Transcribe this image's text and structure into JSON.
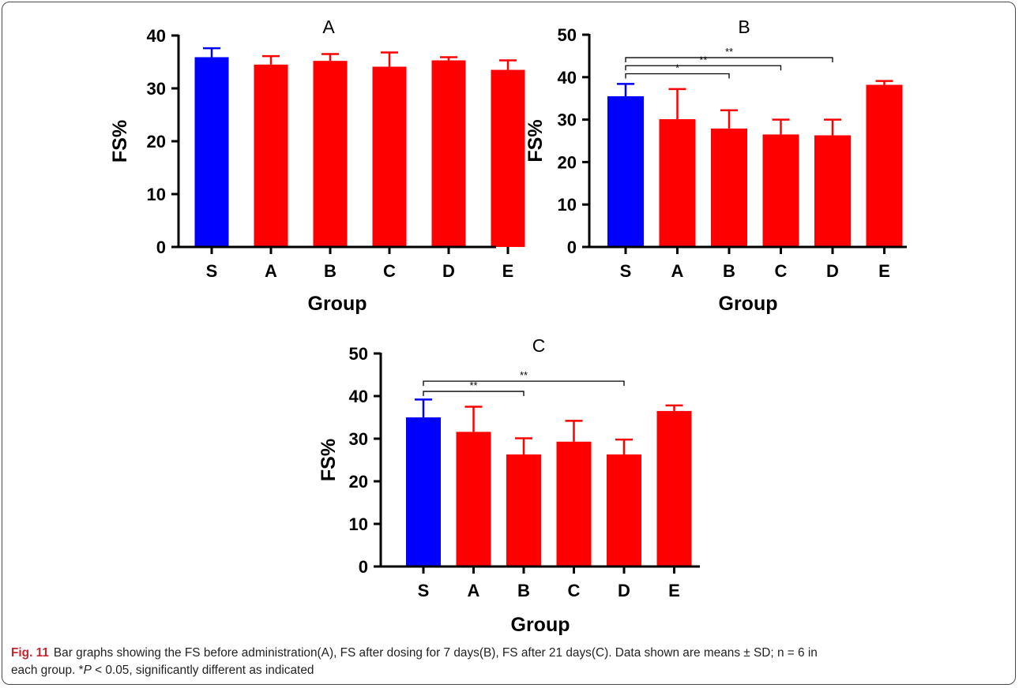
{
  "chart_data": [
    {
      "id": "A",
      "type": "bar",
      "title": "A",
      "xlabel": "Group",
      "ylabel": "FS%",
      "categories": [
        "S",
        "A",
        "B",
        "C",
        "D",
        "E"
      ],
      "values": [
        35.9,
        34.5,
        35.2,
        34.1,
        35.3,
        33.5
      ],
      "errors": [
        1.7,
        1.6,
        1.3,
        2.7,
        0.6,
        1.8
      ],
      "colors": [
        "#0000ff",
        "#ff0000",
        "#ff0000",
        "#ff0000",
        "#ff0000",
        "#ff0000"
      ],
      "ylim": [
        0,
        40
      ],
      "yticks": [
        0,
        10,
        20,
        30,
        40
      ],
      "significance": []
    },
    {
      "id": "B",
      "type": "bar",
      "title": "B",
      "xlabel": "Group",
      "ylabel": "FS%",
      "categories": [
        "S",
        "A",
        "B",
        "C",
        "D",
        "E"
      ],
      "values": [
        35.5,
        30.1,
        27.9,
        26.5,
        26.3,
        38.2
      ],
      "errors": [
        2.9,
        7.1,
        4.3,
        3.5,
        3.7,
        0.9
      ],
      "colors": [
        "#0000ff",
        "#ff0000",
        "#ff0000",
        "#ff0000",
        "#ff0000",
        "#ff0000"
      ],
      "ylim": [
        0,
        50
      ],
      "yticks": [
        0,
        10,
        20,
        30,
        40,
        50
      ],
      "significance": [
        {
          "from": 0,
          "to": 2,
          "label": "*",
          "y": 40.8
        },
        {
          "from": 0,
          "to": 3,
          "label": "**",
          "y": 42.7
        },
        {
          "from": 0,
          "to": 4,
          "label": "**",
          "y": 44.6
        }
      ]
    },
    {
      "id": "C",
      "type": "bar",
      "title": "C",
      "xlabel": "Group",
      "ylabel": "FS%",
      "categories": [
        "S",
        "A",
        "B",
        "C",
        "D",
        "E"
      ],
      "values": [
        35.0,
        31.6,
        26.3,
        29.3,
        26.3,
        36.5
      ],
      "errors": [
        4.2,
        5.9,
        3.8,
        4.9,
        3.5,
        1.3
      ],
      "colors": [
        "#0000ff",
        "#ff0000",
        "#ff0000",
        "#ff0000",
        "#ff0000",
        "#ff0000"
      ],
      "ylim": [
        0,
        50
      ],
      "yticks": [
        0,
        10,
        20,
        30,
        40,
        50
      ],
      "significance": [
        {
          "from": 0,
          "to": 2,
          "label": "**",
          "y": 41.1
        },
        {
          "from": 0,
          "to": 4,
          "label": "**",
          "y": 43.5
        }
      ]
    }
  ],
  "caption": {
    "label": "Fig. 11",
    "line1": "Bar graphs showing the FS before administration(A), FS after dosing for 7 days(B), FS after 21 days(C). Data shown are means ± SD; n = 6 in",
    "line2_pre": "each group. *",
    "line2_italic": "P",
    "line2_post": " < 0.05, significantly different as indicated"
  }
}
